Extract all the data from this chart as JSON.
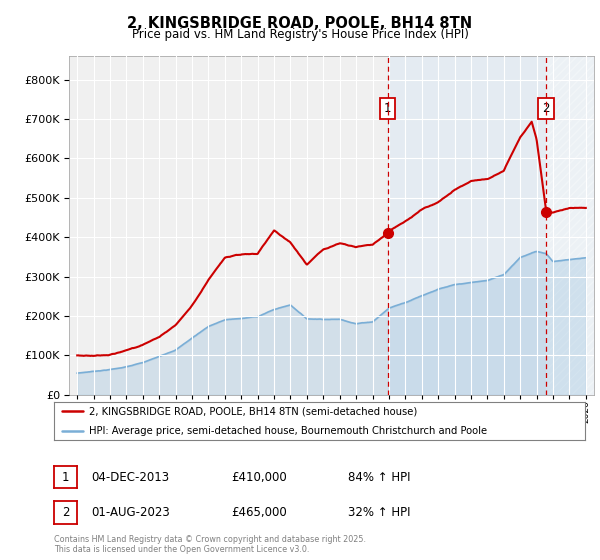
{
  "title": "2, KINGSBRIDGE ROAD, POOLE, BH14 8TN",
  "subtitle": "Price paid vs. HM Land Registry's House Price Index (HPI)",
  "legend_line1": "2, KINGSBRIDGE ROAD, POOLE, BH14 8TN (semi-detached house)",
  "legend_line2": "HPI: Average price, semi-detached house, Bournemouth Christchurch and Poole",
  "annotation1_label": "1",
  "annotation1_date": "04-DEC-2013",
  "annotation1_price": "£410,000",
  "annotation1_hpi": "84% ↑ HPI",
  "annotation2_label": "2",
  "annotation2_date": "01-AUG-2023",
  "annotation2_price": "£465,000",
  "annotation2_hpi": "32% ↑ HPI",
  "footer": "Contains HM Land Registry data © Crown copyright and database right 2025.\nThis data is licensed under the Open Government Licence v3.0.",
  "red_color": "#cc0000",
  "blue_color": "#7aaed6",
  "shade_color": "#dde8f4",
  "marker1_x": 2013.92,
  "marker1_y": 410000,
  "marker2_x": 2023.58,
  "marker2_y": 465000,
  "vline1_x": 2013.92,
  "vline2_x": 2023.58,
  "ylim": [
    0,
    860000
  ],
  "xlim": [
    1994.5,
    2026.5
  ]
}
